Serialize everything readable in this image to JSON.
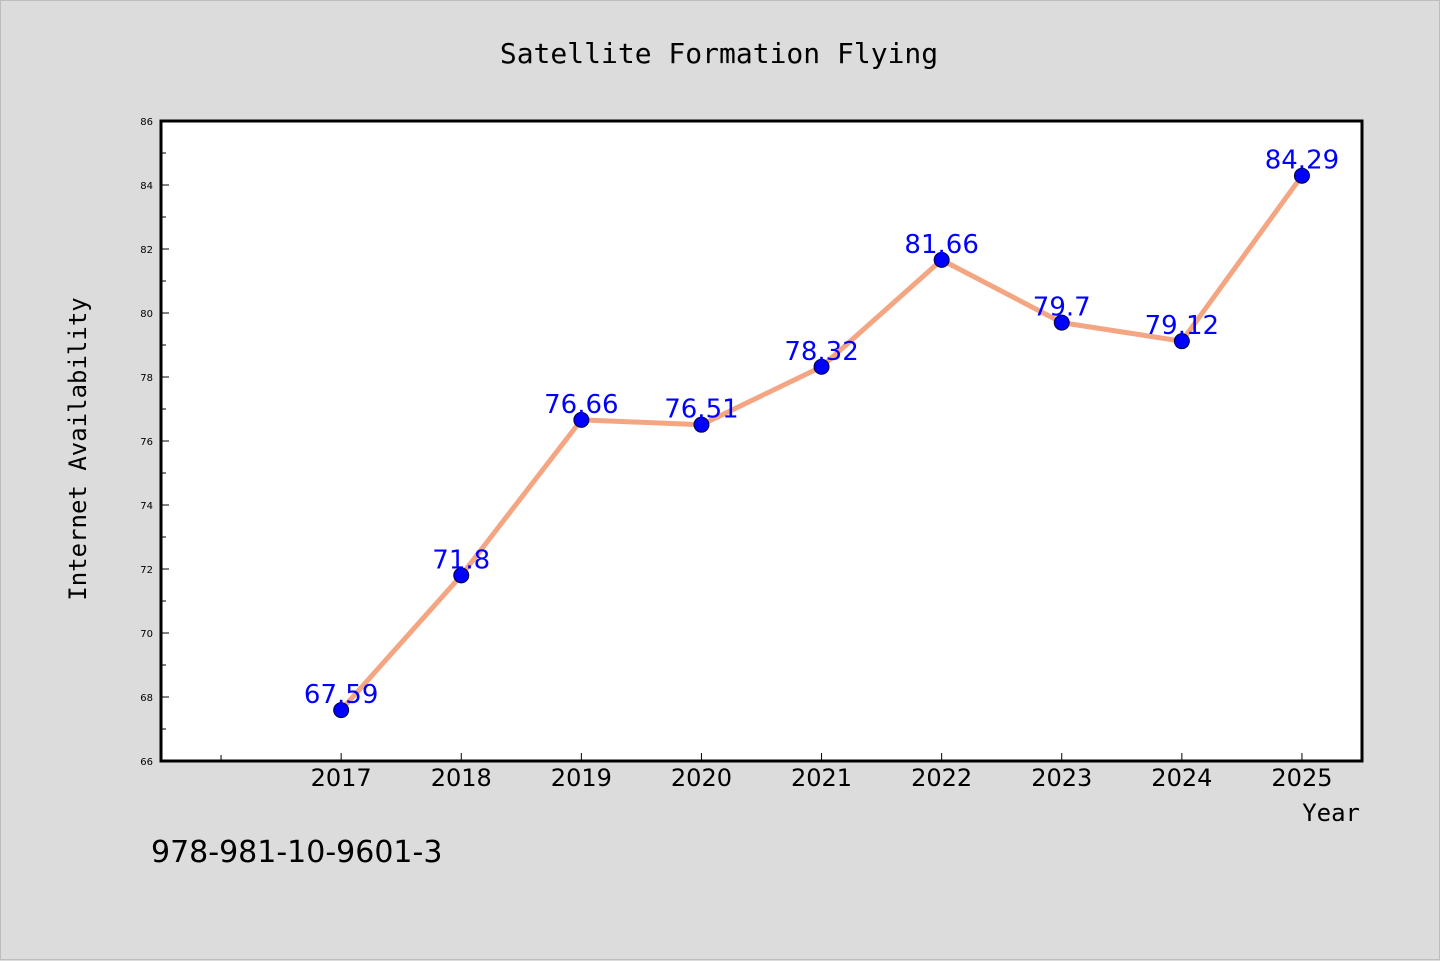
{
  "chart_data": {
    "type": "line",
    "title": "Satellite Formation Flying",
    "xlabel": "Year",
    "ylabel": "Internet Availability",
    "categories": [
      "2017",
      "2018",
      "2019",
      "2020",
      "2021",
      "2022",
      "2023",
      "2024",
      "2025"
    ],
    "series": [
      {
        "values": [
          67.59,
          71.8,
          76.66,
          76.51,
          78.32,
          81.66,
          79.7,
          79.12,
          84.29
        ],
        "labels": [
          "67.59",
          "71.8",
          "76.66",
          "76.51",
          "78.32",
          "81.66",
          "79.7",
          "79.12",
          "84.29"
        ],
        "line_color": "#f4a582",
        "marker_color": "#0000ff"
      }
    ],
    "ylim": [
      66,
      86
    ],
    "yticks": [
      "66",
      "68",
      "70",
      "72",
      "74",
      "76",
      "78",
      "80",
      "82",
      "84",
      "86"
    ],
    "xlim": [
      2015.5,
      2025.5
    ],
    "grid": false,
    "legend": "none",
    "data_label_color": "#0000ff"
  },
  "footnote": "978-981-10-9601-3"
}
